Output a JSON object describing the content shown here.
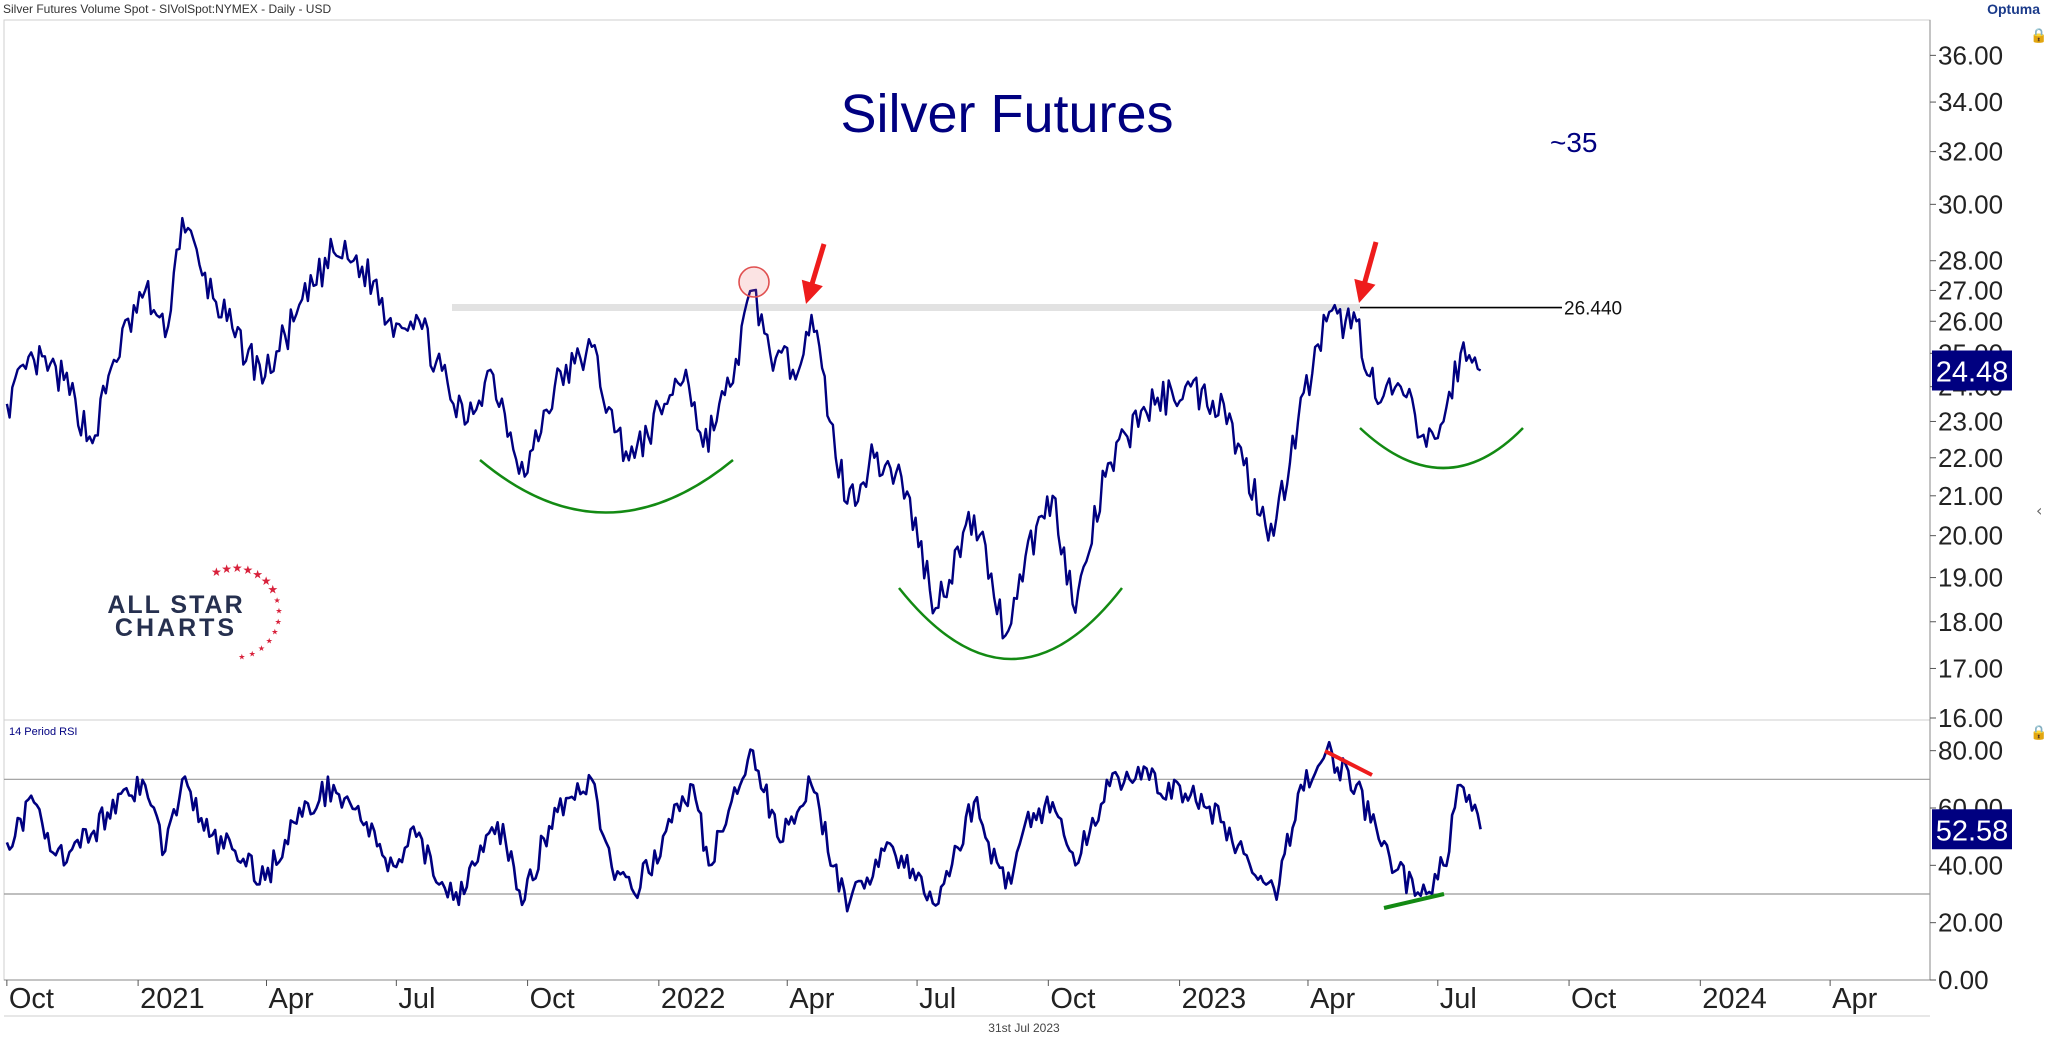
{
  "header": {
    "instrument_line": "Silver Futures Volume Spot - SIVolSpot:NYMEX - Daily - USD",
    "brand": "Optuma",
    "date_footer": "31st Jul 2023"
  },
  "logo": {
    "line1": "ALL STAR",
    "line2": "CHARTS"
  },
  "colors": {
    "price_line": "#000080",
    "annotation_red": "#ee1c1c",
    "annotation_green": "#138a13",
    "resistance_band": "#e2e2e2",
    "grid_line": "#999999",
    "axis_text": "#222222",
    "badge_bg": "#000080"
  },
  "chart_data": [
    {
      "type": "line",
      "title": "Silver Futures",
      "annotation_text": "~35",
      "y_scale": "log",
      "ylim": [
        16.0,
        37.5
      ],
      "y_ticks": [
        "36.00",
        "34.00",
        "32.00",
        "30.00",
        "28.00",
        "27.00",
        "26.00",
        "25.00",
        "24.00",
        "23.00",
        "22.00",
        "21.00",
        "20.00",
        "19.00",
        "18.00",
        "17.00",
        "16.00"
      ],
      "resistance_level": "26.440",
      "last_value": "24.48",
      "series": [
        {
          "points": [
            [
              "2020-10-01",
              23.5
            ],
            [
              "2020-10-20",
              24.8
            ],
            [
              "2020-11-10",
              24.2
            ],
            [
              "2020-11-30",
              22.4
            ],
            [
              "2020-12-15",
              24.8
            ],
            [
              "2021-01-06",
              27.0
            ],
            [
              "2021-01-20",
              25.5
            ],
            [
              "2021-02-01",
              29.5
            ],
            [
              "2021-02-15",
              27.5
            ],
            [
              "2021-03-10",
              25.5
            ],
            [
              "2021-03-31",
              24.3
            ],
            [
              "2021-04-20",
              26.0
            ],
            [
              "2021-05-18",
              28.3
            ],
            [
              "2021-06-01",
              28.0
            ],
            [
              "2021-06-15",
              27.3
            ],
            [
              "2021-06-25",
              26.0
            ],
            [
              "2021-07-15",
              26.2
            ],
            [
              "2021-08-10",
              23.5
            ],
            [
              "2021-08-20",
              23.0
            ],
            [
              "2021-09-05",
              24.5
            ],
            [
              "2021-09-29",
              21.5
            ],
            [
              "2021-10-20",
              24.0
            ],
            [
              "2021-11-15",
              25.2
            ],
            [
              "2021-12-01",
              22.7
            ],
            [
              "2021-12-15",
              22.0
            ],
            [
              "2022-01-05",
              23.5
            ],
            [
              "2022-01-20",
              24.5
            ],
            [
              "2022-02-01",
              22.3
            ],
            [
              "2022-02-20",
              24.0
            ],
            [
              "2022-03-08",
              27.0
            ],
            [
              "2022-03-20",
              25.0
            ],
            [
              "2022-04-05",
              24.5
            ],
            [
              "2022-04-18",
              26.2
            ],
            [
              "2022-05-01",
              23.0
            ],
            [
              "2022-05-13",
              20.8
            ],
            [
              "2022-06-01",
              22.0
            ],
            [
              "2022-06-20",
              21.5
            ],
            [
              "2022-07-14",
              18.3
            ],
            [
              "2022-08-10",
              20.5
            ],
            [
              "2022-09-01",
              17.7
            ],
            [
              "2022-09-15",
              19.5
            ],
            [
              "2022-10-04",
              21.0
            ],
            [
              "2022-10-20",
              18.2
            ],
            [
              "2022-11-10",
              21.5
            ],
            [
              "2022-12-05",
              23.3
            ],
            [
              "2023-01-05",
              24.0
            ],
            [
              "2023-02-01",
              23.5
            ],
            [
              "2023-02-15",
              21.8
            ],
            [
              "2023-03-08",
              20.0
            ],
            [
              "2023-03-25",
              23.0
            ],
            [
              "2023-04-14",
              26.0
            ],
            [
              "2023-05-05",
              26.0
            ],
            [
              "2023-05-20",
              23.5
            ],
            [
              "2023-06-05",
              24.0
            ],
            [
              "2023-06-23",
              22.3
            ],
            [
              "2023-07-05",
              23.0
            ],
            [
              "2023-07-17",
              25.0
            ],
            [
              "2023-07-31",
              24.48
            ]
          ]
        }
      ]
    },
    {
      "type": "line",
      "title": "14 Period RSI",
      "ylim": [
        0,
        90
      ],
      "y_ticks": [
        "80.00",
        "60.00",
        "40.00",
        "20.00",
        "0.00"
      ],
      "reference_lines": [
        70,
        30
      ],
      "last_value": "52.58",
      "series": [
        {
          "points": [
            [
              "2020-10-01",
              48
            ],
            [
              "2020-10-20",
              62
            ],
            [
              "2020-11-10",
              40
            ],
            [
              "2020-12-01",
              52
            ],
            [
              "2020-12-20",
              65
            ],
            [
              "2021-01-06",
              68
            ],
            [
              "2021-01-20",
              45
            ],
            [
              "2021-02-01",
              70
            ],
            [
              "2021-02-20",
              50
            ],
            [
              "2021-03-10",
              45
            ],
            [
              "2021-03-31",
              35
            ],
            [
              "2021-04-20",
              55
            ],
            [
              "2021-05-18",
              68
            ],
            [
              "2021-06-10",
              55
            ],
            [
              "2021-06-25",
              38
            ],
            [
              "2021-07-15",
              50
            ],
            [
              "2021-08-10",
              28
            ],
            [
              "2021-08-25",
              40
            ],
            [
              "2021-09-10",
              55
            ],
            [
              "2021-09-29",
              28
            ],
            [
              "2021-10-20",
              60
            ],
            [
              "2021-11-15",
              70
            ],
            [
              "2021-12-01",
              35
            ],
            [
              "2021-12-15",
              30
            ],
            [
              "2022-01-10",
              55
            ],
            [
              "2022-01-25",
              68
            ],
            [
              "2022-02-05",
              40
            ],
            [
              "2022-02-25",
              65
            ],
            [
              "2022-03-08",
              80
            ],
            [
              "2022-03-25",
              50
            ],
            [
              "2022-04-18",
              68
            ],
            [
              "2022-05-13",
              24
            ],
            [
              "2022-06-10",
              48
            ],
            [
              "2022-07-14",
              26
            ],
            [
              "2022-08-10",
              62
            ],
            [
              "2022-09-01",
              32
            ],
            [
              "2022-09-15",
              55
            ],
            [
              "2022-10-04",
              62
            ],
            [
              "2022-10-20",
              40
            ],
            [
              "2022-11-15",
              72
            ],
            [
              "2022-12-05",
              70
            ],
            [
              "2023-01-05",
              65
            ],
            [
              "2023-01-20",
              60
            ],
            [
              "2023-02-01",
              55
            ],
            [
              "2023-02-25",
              35
            ],
            [
              "2023-03-10",
              28
            ],
            [
              "2023-03-25",
              65
            ],
            [
              "2023-04-14",
              80
            ],
            [
              "2023-05-05",
              68
            ],
            [
              "2023-05-15",
              55
            ],
            [
              "2023-06-01",
              38
            ],
            [
              "2023-06-23",
              30
            ],
            [
              "2023-07-05",
              40
            ],
            [
              "2023-07-17",
              68
            ],
            [
              "2023-07-31",
              52.58
            ]
          ]
        }
      ]
    }
  ],
  "x_axis": {
    "ticks": [
      {
        "label": "Oct",
        "date": "2020-10-01"
      },
      {
        "label": "2021",
        "date": "2021-01-01"
      },
      {
        "label": "Apr",
        "date": "2021-04-01"
      },
      {
        "label": "Jul",
        "date": "2021-07-01"
      },
      {
        "label": "Oct",
        "date": "2021-10-01"
      },
      {
        "label": "2022",
        "date": "2022-01-01"
      },
      {
        "label": "Apr",
        "date": "2022-04-01"
      },
      {
        "label": "Jul",
        "date": "2022-07-01"
      },
      {
        "label": "Oct",
        "date": "2022-10-01"
      },
      {
        "label": "2023",
        "date": "2023-01-01"
      },
      {
        "label": "Apr",
        "date": "2023-04-01"
      },
      {
        "label": "Jul",
        "date": "2023-07-01"
      },
      {
        "label": "Oct",
        "date": "2023-10-01"
      },
      {
        "label": "2024",
        "date": "2024-01-01"
      },
      {
        "label": "Apr",
        "date": "2024-04-01"
      }
    ]
  }
}
